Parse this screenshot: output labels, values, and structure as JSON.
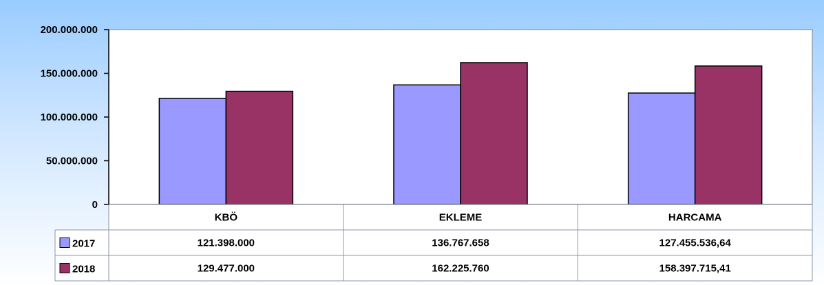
{
  "chart_data": {
    "type": "bar",
    "categories": [
      "KBÖ",
      "EKLEME",
      "HARCAMA"
    ],
    "series": [
      {
        "name": "2017",
        "values": [
          121398000,
          136767658,
          127455536.64
        ],
        "labels": [
          "121.398.000",
          "136.767.658",
          "127.455.536,64"
        ],
        "color": "#9999ff"
      },
      {
        "name": "2018",
        "values": [
          129477000,
          162225760,
          158397715.41
        ],
        "labels": [
          "129.477.000",
          "162.225.760",
          "158.397.715,41"
        ],
        "color": "#993366"
      }
    ],
    "ylim": [
      0,
      200000000
    ],
    "yticks": [
      {
        "value": 0,
        "label": "0"
      },
      {
        "value": 50000000,
        "label": "50.000.000"
      },
      {
        "value": 100000000,
        "label": "100.000.000"
      },
      {
        "value": 150000000,
        "label": "150.000.000"
      },
      {
        "value": 200000000,
        "label": "200.000.000"
      }
    ],
    "grid": false,
    "legend": "data-table-left",
    "colors": {
      "background_top": "#99ccff",
      "background_bottom": "#ffffff",
      "plot_area": "#ffffff",
      "table_lines": "#8c96a8"
    }
  }
}
